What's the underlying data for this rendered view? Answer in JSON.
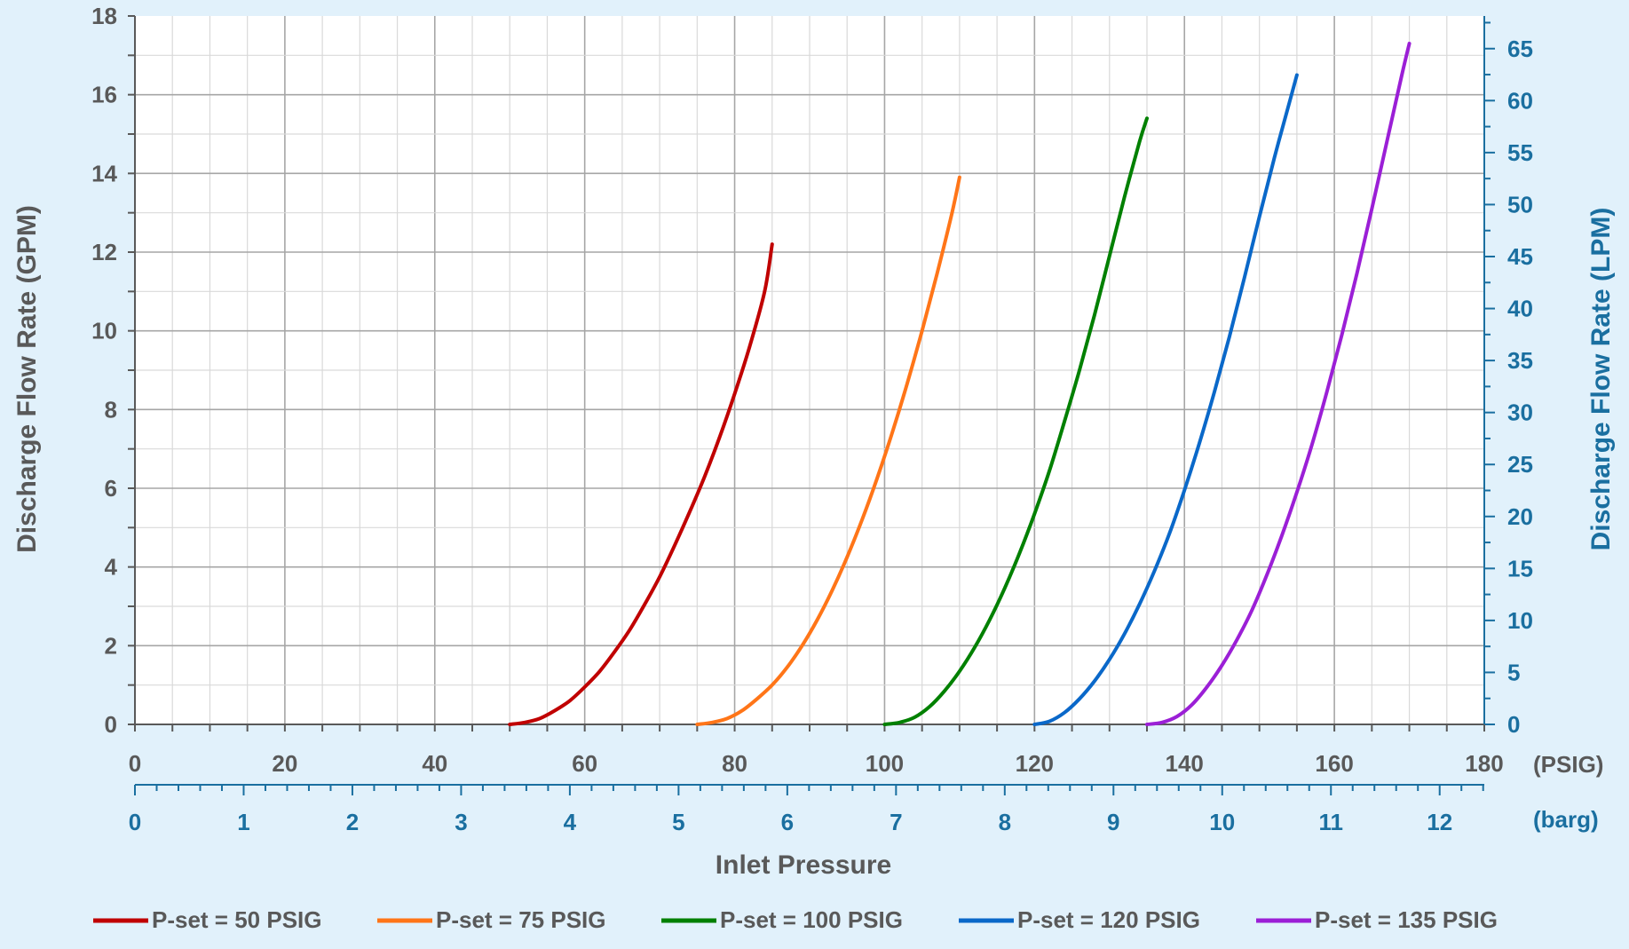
{
  "chart_data": {
    "type": "line",
    "ylabel": "Discharge Flow Rate (GPM)",
    "ylabel_right": "Discharge Flow Rate (LPM)",
    "xlabel": "Inlet Pressure",
    "x_unit_primary": "(PSIG)",
    "x_unit_secondary": "(barg)",
    "xlim": [
      0,
      180
    ],
    "ylim": [
      0,
      18
    ],
    "ylim_right": [
      0,
      68.14
    ],
    "x_ticks": [
      0,
      20,
      40,
      60,
      80,
      100,
      120,
      140,
      160,
      180
    ],
    "x_ticks_barg": [
      0,
      1,
      2,
      3,
      4,
      5,
      6,
      7,
      8,
      9,
      10,
      11,
      12
    ],
    "y_ticks": [
      0,
      2,
      4,
      6,
      8,
      10,
      12,
      14,
      16,
      18
    ],
    "y_ticks_right": [
      0,
      5,
      10,
      15,
      20,
      25,
      30,
      35,
      40,
      45,
      50,
      55,
      60,
      65
    ],
    "grid": true,
    "legend_position": "bottom",
    "series": [
      {
        "name": "P-set = 50 PSIG",
        "color": "#c00000",
        "x": [
          50,
          52,
          54,
          56,
          58,
          60,
          62,
          64,
          66,
          68,
          70,
          72,
          74,
          76,
          78,
          80,
          82,
          84,
          85
        ],
        "y": [
          0,
          0.05,
          0.15,
          0.35,
          0.6,
          0.95,
          1.35,
          1.85,
          2.4,
          3.05,
          3.75,
          4.55,
          5.4,
          6.3,
          7.3,
          8.4,
          9.6,
          11.0,
          12.2
        ]
      },
      {
        "name": "P-set = 75 PSIG",
        "color": "#ff7518",
        "x": [
          75,
          77,
          79,
          81,
          83,
          85,
          87,
          89,
          91,
          93,
          95,
          97,
          99,
          101,
          103,
          105,
          107,
          109,
          110
        ],
        "y": [
          0,
          0.05,
          0.15,
          0.35,
          0.65,
          1.0,
          1.45,
          2.0,
          2.65,
          3.4,
          4.25,
          5.2,
          6.25,
          7.4,
          8.65,
          10.0,
          11.45,
          13.0,
          13.9
        ]
      },
      {
        "name": "P-set = 100 PSIG",
        "color": "#008000",
        "x": [
          100,
          102,
          104,
          106,
          108,
          110,
          112,
          114,
          116,
          118,
          120,
          122,
          124,
          126,
          128,
          130,
          132,
          134,
          135
        ],
        "y": [
          0,
          0.05,
          0.18,
          0.45,
          0.85,
          1.35,
          1.95,
          2.65,
          3.45,
          4.35,
          5.35,
          6.45,
          7.7,
          9.0,
          10.4,
          11.9,
          13.4,
          14.8,
          15.4
        ]
      },
      {
        "name": "P-set = 120 PSIG",
        "color": "#0a68c9",
        "x": [
          120,
          122,
          124,
          126,
          128,
          130,
          132,
          134,
          136,
          138,
          140,
          142,
          144,
          146,
          148,
          150,
          152,
          154,
          155
        ],
        "y": [
          0,
          0.08,
          0.3,
          0.65,
          1.1,
          1.65,
          2.3,
          3.05,
          3.9,
          4.85,
          5.95,
          7.15,
          8.45,
          9.85,
          11.35,
          12.9,
          14.4,
          15.8,
          16.5
        ]
      },
      {
        "name": "P-set = 135 PSIG",
        "color": "#9b1fd6",
        "x": [
          135,
          137,
          139,
          141,
          143,
          145,
          147,
          149,
          151,
          153,
          155,
          157,
          159,
          161,
          163,
          165,
          167,
          169,
          170
        ],
        "y": [
          0,
          0.05,
          0.2,
          0.5,
          0.95,
          1.5,
          2.15,
          2.9,
          3.8,
          4.8,
          5.9,
          7.1,
          8.45,
          9.9,
          11.45,
          13.1,
          14.8,
          16.5,
          17.3
        ]
      }
    ]
  }
}
